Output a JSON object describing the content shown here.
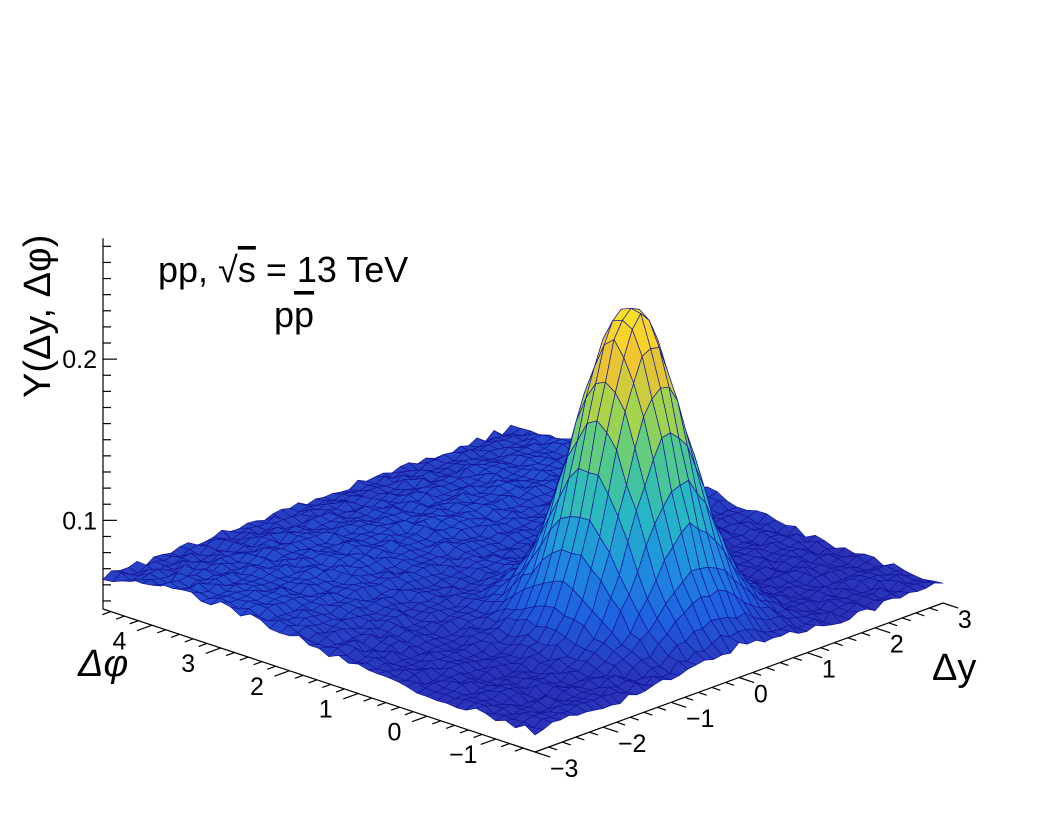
{
  "chart_data": {
    "type": "surface3d",
    "annotations": {
      "line1_prefix": "pp, ",
      "line1_sqrt": "√",
      "line1_s": "s",
      "line1_suffix": " = 13 TeV",
      "line2_p": "p",
      "line2_pbar": "p"
    },
    "xlabel": "Δy",
    "ylabel": "Δφ",
    "zlabel": "Y(Δy, Δφ)",
    "xlim": [
      -3,
      3
    ],
    "ylim": [
      -1.5708,
      4.7124
    ],
    "zlim": [
      0.045,
      0.275
    ],
    "x_ticks": [
      -3,
      -2,
      -1,
      0,
      1,
      2,
      3
    ],
    "x_tick_labels": [
      "−3",
      "−2",
      "−1",
      "0",
      "1",
      "2",
      "3"
    ],
    "y_ticks": [
      -1,
      0,
      1,
      2,
      3,
      4
    ],
    "y_tick_labels": [
      "−1",
      "0",
      "1",
      "2",
      "3",
      "4"
    ],
    "z_ticks": [
      0.1,
      0.2
    ],
    "z_tick_labels": [
      "0.1",
      "0.2"
    ],
    "model": {
      "baseline": 0.058,
      "peak_x": 0.0,
      "peak_y": 0.0,
      "peak_height": 0.195,
      "peak_sigma_x": 0.55,
      "peak_sigma_y": 0.6,
      "ridge_height": 0.014,
      "ridge_center_y": 3.14,
      "ridge_sigma_y": 1.3,
      "noise_amplitude": 0.0025
    },
    "palette": [
      "#2c2ab0",
      "#1f5fe0",
      "#1f8fe0",
      "#26b7c4",
      "#50c98c",
      "#a6d54b",
      "#f2c230",
      "#fbe724"
    ],
    "edge_color": "#141496"
  }
}
